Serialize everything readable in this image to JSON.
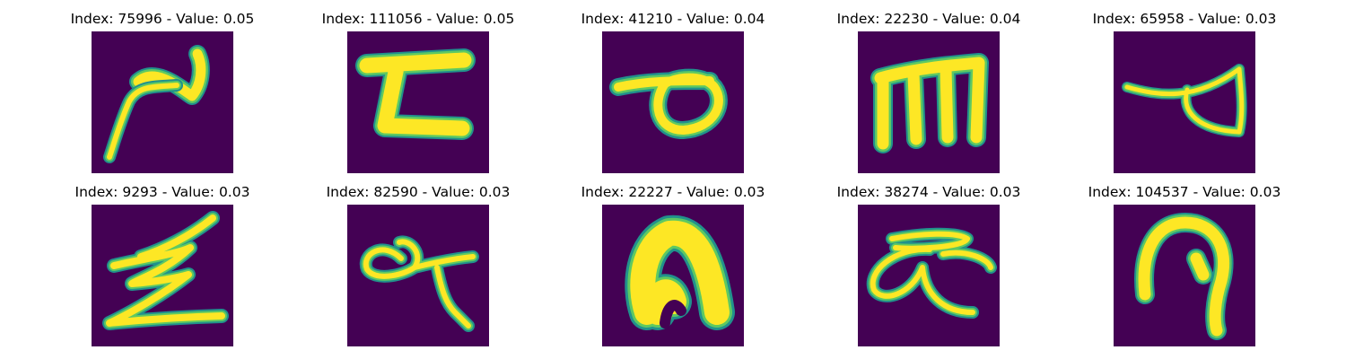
{
  "colors": {
    "background": "#440154",
    "stroke_core": "#fde725",
    "stroke_mid": "#5ec962",
    "stroke_edge": "#21918c"
  },
  "panels": [
    {
      "title": "Index: 75996 - Value: 0.05",
      "glyph": "glyph-1"
    },
    {
      "title": "Index: 111056 - Value: 0.05",
      "glyph": "glyph-2"
    },
    {
      "title": "Index: 41210 - Value: 0.04",
      "glyph": "glyph-3"
    },
    {
      "title": "Index: 22230 - Value: 0.04",
      "glyph": "glyph-4"
    },
    {
      "title": "Index: 65958 - Value: 0.03",
      "glyph": "glyph-5"
    },
    {
      "title": "Index: 9293 - Value: 0.03",
      "glyph": "glyph-6"
    },
    {
      "title": "Index: 82590 - Value: 0.03",
      "glyph": "glyph-7"
    },
    {
      "title": "Index: 22227 - Value: 0.03",
      "glyph": "glyph-8"
    },
    {
      "title": "Index: 38274 - Value: 0.03",
      "glyph": "glyph-9"
    },
    {
      "title": "Index: 104537 - Value: 0.03",
      "glyph": "glyph-10"
    }
  ]
}
